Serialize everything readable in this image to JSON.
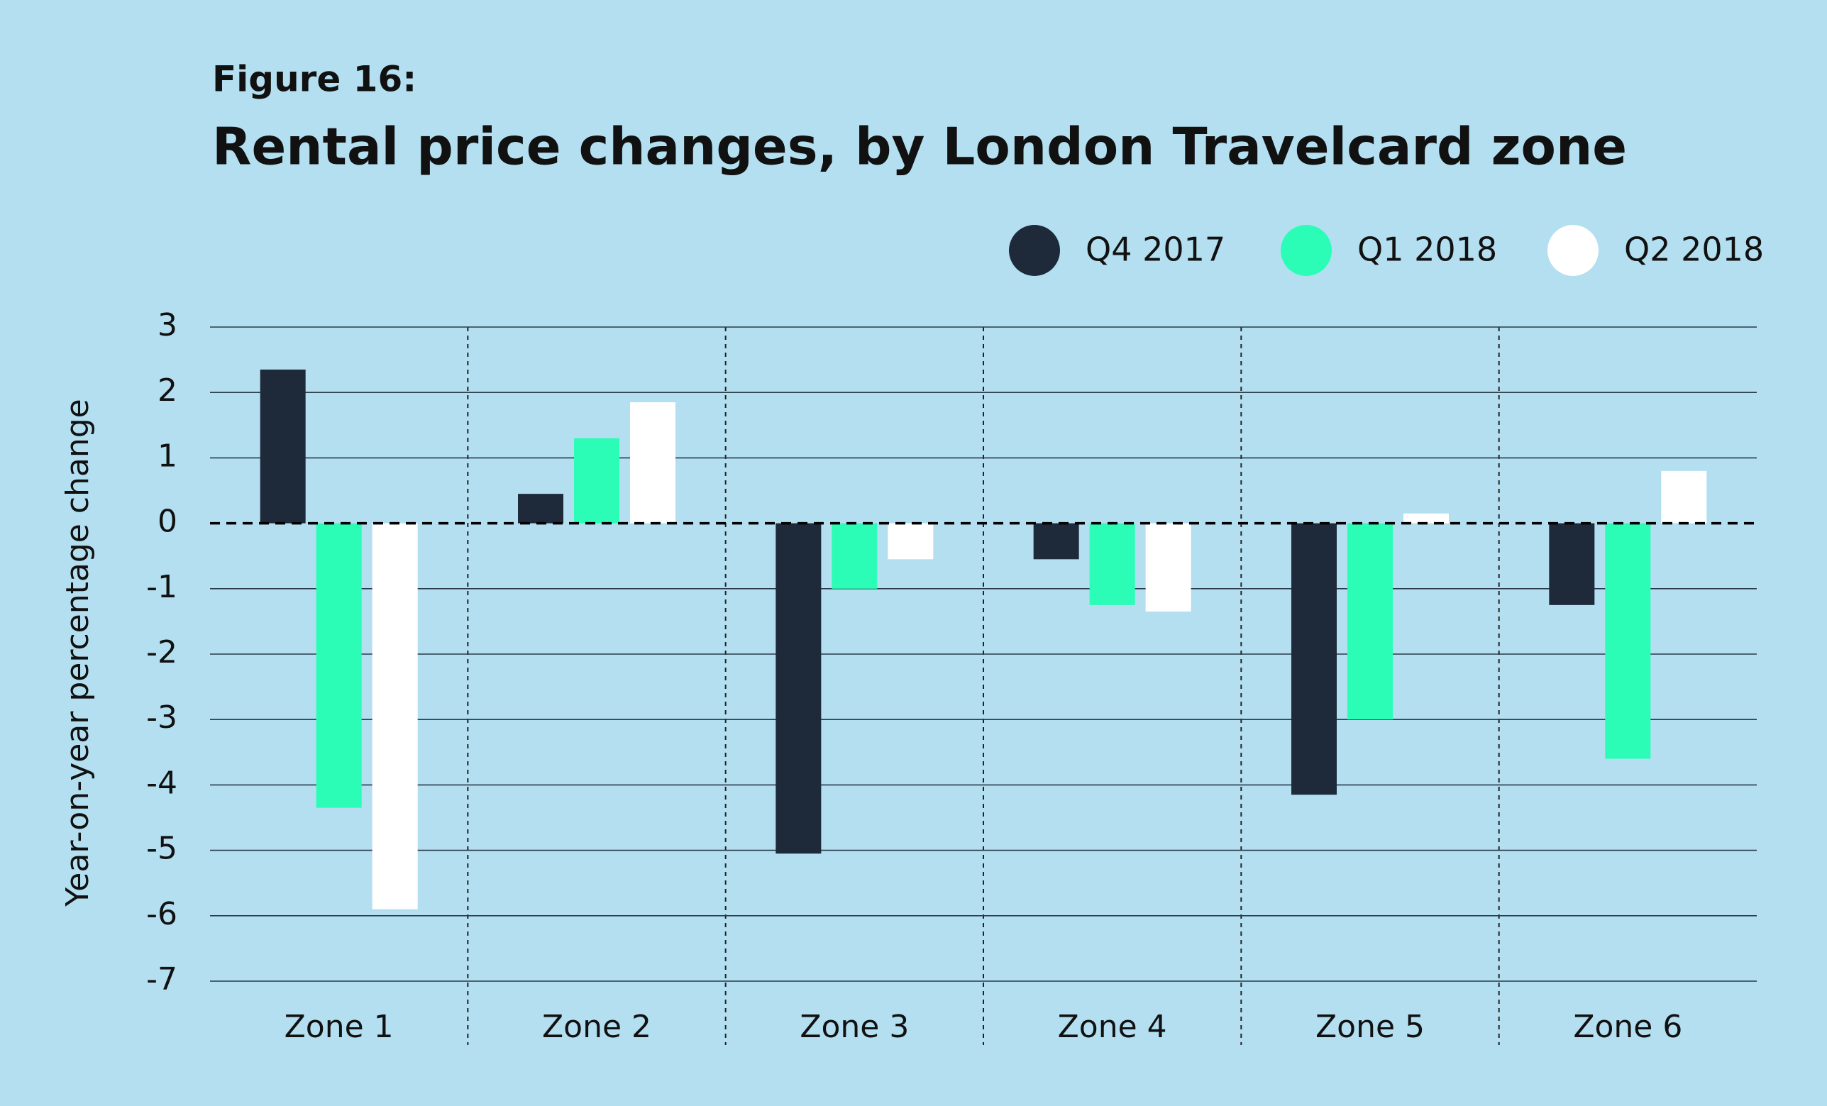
{
  "chart_data": {
    "type": "bar",
    "subtitle": "Figure 16:",
    "title": "Rental price changes, by London Travelcard zone",
    "y_label": "Year-on-year percentage change",
    "categories": [
      "Zone 1",
      "Zone 2",
      "Zone 3",
      "Zone 4",
      "Zone 5",
      "Zone 6"
    ],
    "series": [
      {
        "name": "Q4 2017",
        "color": "#1e2a3a",
        "values": [
          2.35,
          0.45,
          -5.05,
          -0.55,
          -4.15,
          -1.25
        ]
      },
      {
        "name": "Q1 2018",
        "color": "#2cfdb6",
        "values": [
          -4.35,
          1.3,
          -1.0,
          -1.25,
          -3.0,
          -3.6
        ]
      },
      {
        "name": "Q2 2018",
        "color": "#ffffff",
        "values": [
          -5.9,
          1.85,
          -0.55,
          -1.35,
          0.15,
          0.8
        ]
      }
    ],
    "ylim": [
      -7,
      3
    ],
    "yticks": [
      3,
      2,
      1,
      0,
      -1,
      -2,
      -3,
      -4,
      -5,
      -6,
      -7
    ],
    "grid": true,
    "legend": "top-right"
  }
}
